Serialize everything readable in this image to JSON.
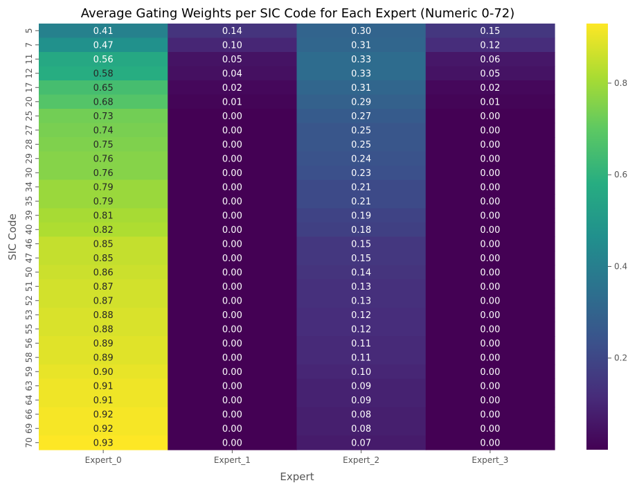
{
  "chart_data": {
    "type": "heatmap",
    "title": "Average Gating Weights per SIC Code for Each Expert (Numeric 0-72)",
    "xlabel": "Expert",
    "ylabel": "SIC Code",
    "columns": [
      "Expert_0",
      "Expert_1",
      "Expert_2",
      "Expert_3"
    ],
    "rows": [
      "5",
      "7",
      "11",
      "12",
      "17",
      "20",
      "25",
      "27",
      "28",
      "29",
      "30",
      "34",
      "35",
      "39",
      "40",
      "46",
      "47",
      "50",
      "51",
      "52",
      "53",
      "55",
      "56",
      "58",
      "59",
      "63",
      "64",
      "66",
      "69",
      "70"
    ],
    "values": [
      [
        0.41,
        0.14,
        0.3,
        0.15
      ],
      [
        0.47,
        0.1,
        0.31,
        0.12
      ],
      [
        0.56,
        0.05,
        0.33,
        0.06
      ],
      [
        0.58,
        0.04,
        0.33,
        0.05
      ],
      [
        0.65,
        0.02,
        0.31,
        0.02
      ],
      [
        0.68,
        0.01,
        0.29,
        0.01
      ],
      [
        0.73,
        0.0,
        0.27,
        0.0
      ],
      [
        0.74,
        0.0,
        0.25,
        0.0
      ],
      [
        0.75,
        0.0,
        0.25,
        0.0
      ],
      [
        0.76,
        0.0,
        0.24,
        0.0
      ],
      [
        0.76,
        0.0,
        0.23,
        0.0
      ],
      [
        0.79,
        0.0,
        0.21,
        0.0
      ],
      [
        0.79,
        0.0,
        0.21,
        0.0
      ],
      [
        0.81,
        0.0,
        0.19,
        0.0
      ],
      [
        0.82,
        0.0,
        0.18,
        0.0
      ],
      [
        0.85,
        0.0,
        0.15,
        0.0
      ],
      [
        0.85,
        0.0,
        0.15,
        0.0
      ],
      [
        0.86,
        0.0,
        0.14,
        0.0
      ],
      [
        0.87,
        0.0,
        0.13,
        0.0
      ],
      [
        0.87,
        0.0,
        0.13,
        0.0
      ],
      [
        0.88,
        0.0,
        0.12,
        0.0
      ],
      [
        0.88,
        0.0,
        0.12,
        0.0
      ],
      [
        0.89,
        0.0,
        0.11,
        0.0
      ],
      [
        0.89,
        0.0,
        0.11,
        0.0
      ],
      [
        0.9,
        0.0,
        0.1,
        0.0
      ],
      [
        0.91,
        0.0,
        0.09,
        0.0
      ],
      [
        0.91,
        0.0,
        0.09,
        0.0
      ],
      [
        0.92,
        0.0,
        0.08,
        0.0
      ],
      [
        0.92,
        0.0,
        0.08,
        0.0
      ],
      [
        0.93,
        0.0,
        0.07,
        0.0
      ]
    ],
    "colormap": "viridis",
    "vmin": 0.0,
    "vmax": 0.93,
    "colorbar_ticks": [
      0.2,
      0.4,
      0.6,
      0.8
    ],
    "annotate": true,
    "grid": false
  }
}
